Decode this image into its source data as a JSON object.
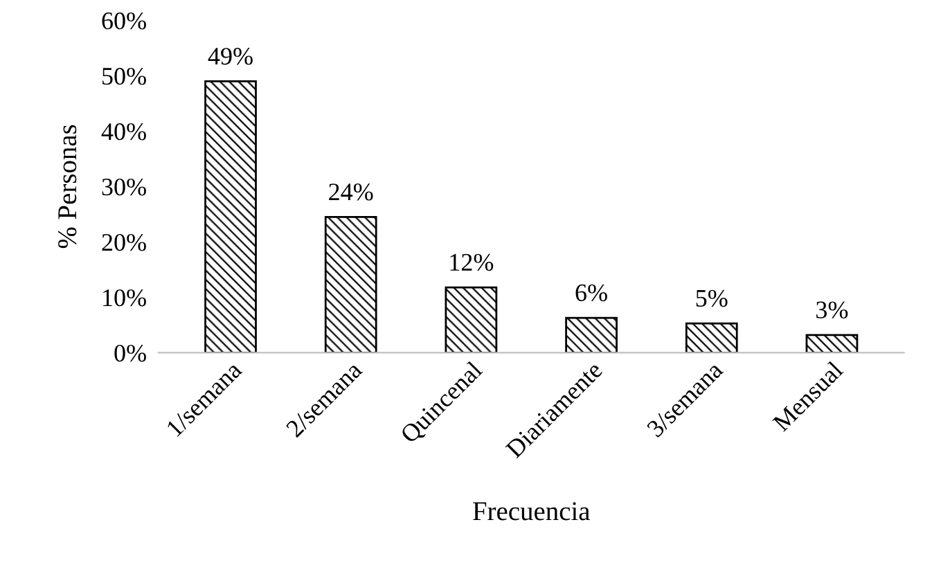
{
  "chart_data": {
    "type": "bar",
    "xlabel": "Frecuencia",
    "ylabel": "% Personas",
    "categories": [
      "1/semana",
      "2/semana",
      "Quincenal",
      "Diariamente",
      "3/semana",
      "Mensual"
    ],
    "values": [
      49,
      24.5,
      11.8,
      6.3,
      5.3,
      3.2
    ],
    "value_labels": [
      "49%",
      "24%",
      "12%",
      "6%",
      "5%",
      "3%"
    ],
    "color": "#000000",
    "ylim": [
      0,
      60
    ],
    "yticks": [
      {
        "value": 0,
        "label": "0%"
      },
      {
        "value": 10,
        "label": "10%"
      },
      {
        "value": 20,
        "label": "20%"
      },
      {
        "value": 30,
        "label": "30%"
      },
      {
        "value": 40,
        "label": "40%"
      },
      {
        "value": 50,
        "label": "50%"
      },
      {
        "value": 60,
        "label": "60%"
      }
    ],
    "grid": false,
    "legend": false
  }
}
